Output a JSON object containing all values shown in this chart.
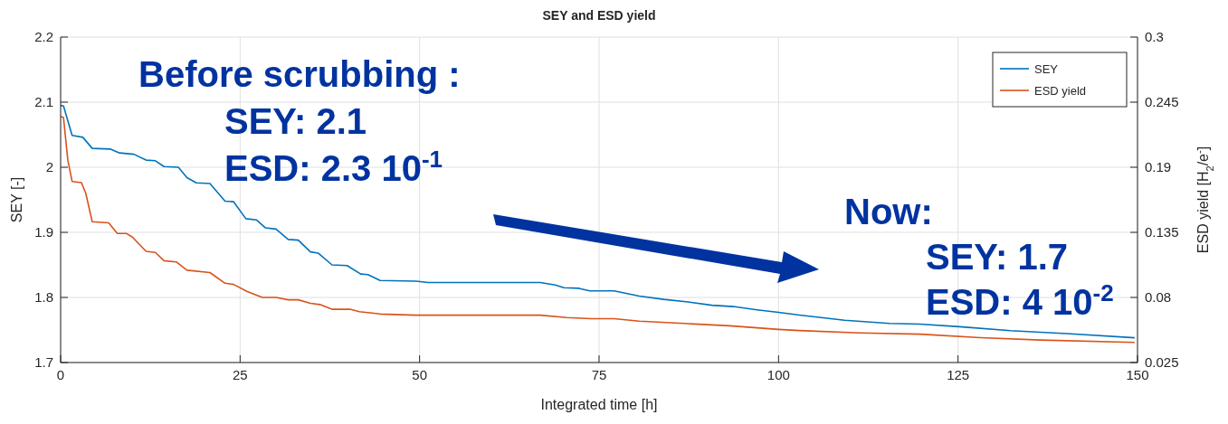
{
  "chart_data": {
    "type": "line",
    "title": "SEY and ESD yield",
    "xlabel": "Integrated time [h]",
    "ylabel": "SEY [-]",
    "y2label": "ESD yield [H$_{2}$/e$^{-}$]",
    "xlim": [
      0,
      150
    ],
    "xticks": [
      0,
      25,
      50,
      75,
      100,
      125,
      150
    ],
    "ylim": [
      1.7,
      2.2
    ],
    "yticks": [
      1.7,
      1.8,
      1.9,
      2,
      2.1,
      2.2
    ],
    "y2lim": [
      0.025,
      0.3
    ],
    "y2ticks": [
      0.025,
      0.08,
      0.135,
      0.19,
      0.245,
      0.3
    ],
    "grid": true,
    "legend": "top right",
    "annotations": [
      "Before scrubbing :",
      "SEY: 2.1",
      "ESD: 2.3 10$^{-1}$",
      "Now:",
      "SEY: 1.7",
      "ESD: 4 10$^{-2}$"
    ],
    "series": [
      {
        "name": "SEY",
        "color": "#0072bd",
        "x": [
          0,
          0.4,
          1.6,
          3.1,
          4.4,
          6.9,
          8.2,
          10.2,
          11.9,
          13.2,
          14.4,
          16.4,
          17.6,
          18.9,
          20.8,
          22.9,
          24.1,
          25.8,
          27.3,
          28.5,
          30,
          31.7,
          33.1,
          34.8,
          35.9,
          37.8,
          39.9,
          41.8,
          42.8,
          44.5,
          49.5,
          51.2,
          66.8,
          68.9,
          70.1,
          72.2,
          73.7,
          77.1,
          80.6,
          84,
          87.4,
          90.7,
          93.7,
          97,
          100,
          102.9,
          109.2,
          115.5,
          119.7,
          125.2,
          132.3,
          140.7,
          149.6
        ],
        "values": [
          2.095,
          2.094,
          2.049,
          2.046,
          2.029,
          2.028,
          2.022,
          2.02,
          2.011,
          2.01,
          2.001,
          2,
          1.984,
          1.976,
          1.975,
          1.948,
          1.947,
          1.921,
          1.919,
          1.907,
          1.905,
          1.889,
          1.888,
          1.87,
          1.868,
          1.85,
          1.849,
          1.836,
          1.835,
          1.826,
          1.825,
          1.823,
          1.823,
          1.819,
          1.815,
          1.814,
          1.81,
          1.81,
          1.802,
          1.797,
          1.793,
          1.788,
          1.786,
          1.781,
          1.777,
          1.773,
          1.765,
          1.76,
          1.759,
          1.755,
          1.749,
          1.744,
          1.738
        ]
      },
      {
        "name": "ESD yield",
        "color": "#d95319",
        "axis": "y2",
        "x": [
          0,
          0.4,
          1,
          1.6,
          2.9,
          3.5,
          4.4,
          6.7,
          7.9,
          9.2,
          10,
          11.9,
          13.2,
          14.4,
          16.1,
          17.6,
          20.8,
          22.9,
          24.1,
          26,
          28.1,
          30,
          31.7,
          33.1,
          34.8,
          36.1,
          37.8,
          40.3,
          41.6,
          44.5,
          49.5,
          51.2,
          66.8,
          70.5,
          73.9,
          77.1,
          80.6,
          86.9,
          93.2,
          100,
          102.9,
          111.3,
          119.7,
          128.1,
          136.5,
          149.6
        ],
        "values": [
          0.233,
          0.232,
          0.196,
          0.178,
          0.177,
          0.168,
          0.144,
          0.143,
          0.134,
          0.134,
          0.131,
          0.119,
          0.118,
          0.111,
          0.11,
          0.103,
          0.101,
          0.092,
          0.091,
          0.085,
          0.08,
          0.08,
          0.078,
          0.078,
          0.075,
          0.074,
          0.07,
          0.07,
          0.068,
          0.066,
          0.065,
          0.065,
          0.065,
          0.063,
          0.062,
          0.062,
          0.06,
          0.058,
          0.056,
          0.053,
          0.052,
          0.05,
          0.049,
          0.046,
          0.044,
          0.042
        ]
      }
    ]
  }
}
